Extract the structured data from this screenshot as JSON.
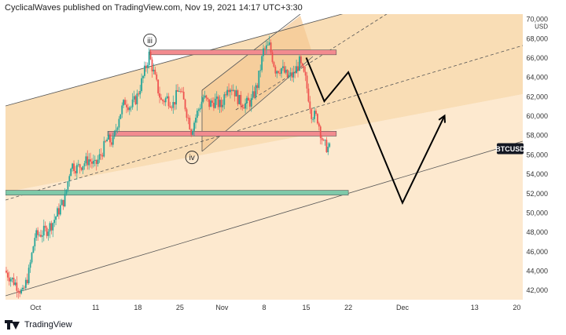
{
  "header": {
    "text": "CyclicalWaves published on TradingView.com, Nov 19, 2021 14:17 UTC+3:30"
  },
  "footer": {
    "brand": "TradingView"
  },
  "chart_data": {
    "type": "candlestick",
    "symbol": "BTCUSD",
    "y_currency": "USD",
    "last_price": 56600,
    "ylim": [
      41000,
      70500
    ],
    "y_ticks": [
      42000,
      44000,
      46000,
      48000,
      50000,
      52000,
      54000,
      56000,
      58000,
      60000,
      62000,
      64000,
      66000,
      68000,
      70000
    ],
    "x_range": [
      "2021-09-26",
      "2021-12-21"
    ],
    "x_ticks": [
      {
        "date": "2021-10-01",
        "label": "Oct"
      },
      {
        "date": "2021-10-11",
        "label": "11"
      },
      {
        "date": "2021-10-18",
        "label": "18"
      },
      {
        "date": "2021-10-25",
        "label": "25"
      },
      {
        "date": "2021-11-01",
        "label": "Nov"
      },
      {
        "date": "2021-11-08",
        "label": "8"
      },
      {
        "date": "2021-11-15",
        "label": "15"
      },
      {
        "date": "2021-11-22",
        "label": "22"
      },
      {
        "date": "2021-12-01",
        "label": "Dec"
      },
      {
        "date": "2021-12-13",
        "label": "13"
      },
      {
        "date": "2021-12-20",
        "label": "20"
      }
    ],
    "close_path": [
      [
        "2021-09-26",
        44000
      ],
      [
        "2021-09-28",
        42500
      ],
      [
        "2021-09-29",
        41600
      ],
      [
        "2021-09-30",
        43800
      ],
      [
        "2021-10-01",
        47500
      ],
      [
        "2021-10-03",
        48200
      ],
      [
        "2021-10-04",
        49000
      ],
      [
        "2021-10-06",
        51500
      ],
      [
        "2021-10-07",
        55000
      ],
      [
        "2021-10-08",
        54600
      ],
      [
        "2021-10-10",
        55500
      ],
      [
        "2021-10-11",
        54800
      ],
      [
        "2021-10-12",
        56000
      ],
      [
        "2021-10-13",
        57500
      ],
      [
        "2021-10-14",
        57300
      ],
      [
        "2021-10-15",
        60000
      ],
      [
        "2021-10-16",
        61500
      ],
      [
        "2021-10-17",
        60900
      ],
      [
        "2021-10-18",
        62000
      ],
      [
        "2021-10-19",
        64000
      ],
      [
        "2021-10-20",
        66300
      ],
      [
        "2021-10-21",
        63800
      ],
      [
        "2021-10-22",
        61500
      ],
      [
        "2021-10-23",
        61800
      ],
      [
        "2021-10-24",
        61200
      ],
      [
        "2021-10-25",
        62800
      ],
      [
        "2021-10-26",
        61000
      ],
      [
        "2021-10-27",
        58500
      ],
      [
        "2021-10-28",
        60300
      ],
      [
        "2021-10-29",
        61900
      ],
      [
        "2021-10-30",
        61200
      ],
      [
        "2021-10-31",
        61500
      ],
      [
        "2021-11-01",
        61000
      ],
      [
        "2021-11-02",
        63200
      ],
      [
        "2021-11-03",
        62800
      ],
      [
        "2021-11-04",
        61500
      ],
      [
        "2021-11-05",
        61200
      ],
      [
        "2021-11-06",
        61500
      ],
      [
        "2021-11-07",
        63200
      ],
      [
        "2021-11-08",
        66700
      ],
      [
        "2021-11-09",
        67200
      ],
      [
        "2021-11-10",
        64800
      ],
      [
        "2021-11-11",
        64900
      ],
      [
        "2021-11-12",
        64000
      ],
      [
        "2021-11-13",
        64200
      ],
      [
        "2021-11-14",
        65500
      ],
      [
        "2021-11-15",
        63700
      ],
      [
        "2021-11-16",
        60300
      ],
      [
        "2021-11-17",
        59700
      ],
      [
        "2021-11-18",
        57000
      ],
      [
        "2021-11-19",
        56600
      ]
    ],
    "zones": [
      {
        "type": "resistance",
        "top": 66800,
        "bottom": 66300,
        "from": "2021-10-20",
        "to": "2021-11-20"
      },
      {
        "type": "resistance",
        "top": 58400,
        "bottom": 57900,
        "from": "2021-10-13",
        "to": "2021-11-20"
      },
      {
        "type": "support",
        "top": 52300,
        "bottom": 51800,
        "from": "2021-09-26",
        "to": "2021-11-22"
      }
    ],
    "projection": [
      [
        "2021-11-15",
        66000
      ],
      [
        "2021-11-18",
        61500
      ],
      [
        "2021-11-22",
        64500
      ],
      [
        "2021-12-01",
        51000
      ],
      [
        "2021-12-08",
        60000
      ]
    ],
    "wave_labels": [
      {
        "text": "iii",
        "date": "2021-10-20",
        "price": 67800
      },
      {
        "text": "iv",
        "date": "2021-10-27",
        "price": 55700
      }
    ],
    "colors": {
      "up": "#26a69a",
      "down": "#ef5350",
      "zone_red": "#f28b8f",
      "zone_green": "#7fc9a9",
      "channel_fill": "#f8d7a8",
      "tag_bg": "#131722"
    }
  }
}
